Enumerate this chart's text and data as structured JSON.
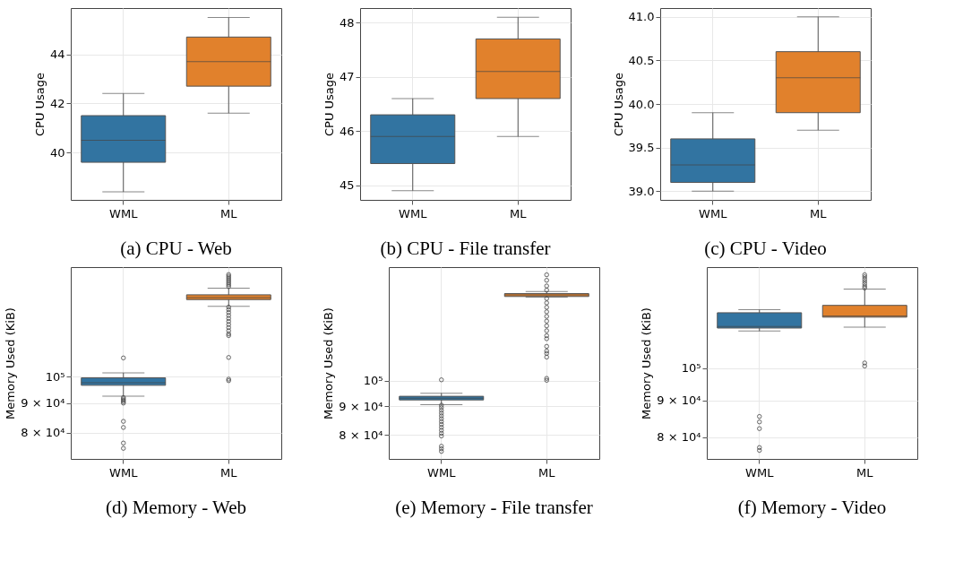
{
  "chart_data": [
    {
      "type": "box",
      "title": "(a)  CPU - Web",
      "ylabel": "CPU Usage",
      "categories": [
        "WML",
        "ML"
      ],
      "colors": [
        "#3274a1",
        "#e1812c"
      ],
      "ylim": [
        38.07,
        45.88
      ],
      "yticks": [
        40,
        42,
        44
      ],
      "grid": true,
      "boxes": [
        {
          "low": 38.4,
          "q1": 39.6,
          "median": 40.5,
          "q3": 41.5,
          "high": 42.4
        },
        {
          "low": 41.6,
          "q1": 42.7,
          "median": 43.7,
          "q3": 44.7,
          "high": 45.5
        }
      ]
    },
    {
      "type": "box",
      "title": "(b)  CPU - File transfer",
      "ylabel": "CPU Usage",
      "categories": [
        "WML",
        "ML"
      ],
      "colors": [
        "#3274a1",
        "#e1812c"
      ],
      "ylim": [
        44.73,
        48.27
      ],
      "yticks": [
        45,
        46,
        47,
        48
      ],
      "grid": true,
      "boxes": [
        {
          "low": 44.9,
          "q1": 45.4,
          "median": 45.9,
          "q3": 46.3,
          "high": 46.6
        },
        {
          "low": 45.9,
          "q1": 46.6,
          "median": 47.1,
          "q3": 47.7,
          "high": 48.1
        }
      ]
    },
    {
      "type": "box",
      "title": "(c)  CPU - Video",
      "ylabel": "CPU Usage",
      "categories": [
        "WML",
        "ML"
      ],
      "colors": [
        "#3274a1",
        "#e1812c"
      ],
      "ylim": [
        38.9,
        41.1
      ],
      "yticks": [
        {
          "value": 39,
          "label": "39.0"
        },
        39.5,
        {
          "value": 40,
          "label": "40.0"
        },
        40.5,
        {
          "value": 41,
          "label": "41.0"
        }
      ],
      "grid": true,
      "boxes": [
        {
          "low": 39.0,
          "q1": 39.1,
          "median": 39.3,
          "q3": 39.6,
          "high": 39.9
        },
        {
          "low": 39.7,
          "q1": 39.9,
          "median": 40.3,
          "q3": 40.6,
          "high": 41.0
        }
      ]
    },
    {
      "type": "box",
      "title": "(d)  Memory - Web",
      "ylabel": "Memory Used (KiB)",
      "categories": [
        "WML",
        "ML"
      ],
      "colors": [
        "#3274a1",
        "#e1812c"
      ],
      "log": true,
      "ylim": [
        72100,
        154500
      ],
      "yticks": [
        {
          "value": 80000,
          "label": "8 × 10⁴"
        },
        {
          "value": 90000,
          "label": "9 × 10⁴"
        },
        {
          "value": 100000,
          "label": "10⁵"
        }
      ],
      "grid": true,
      "boxes": [
        {
          "low": 92500,
          "q1": 96600,
          "median": 97600,
          "q3": 99500,
          "high": 101500,
          "outliers": [
            107700,
            92000,
            91500,
            91000,
            90500,
            90000,
            83700,
            81700,
            76800,
            75200
          ]
        },
        {
          "low": 132200,
          "q1": 135800,
          "median": 136900,
          "q3": 138400,
          "high": 142100,
          "outliers": [
            150000,
            149000,
            148000,
            147000,
            146000,
            145000,
            144000,
            143000,
            131800,
            130500,
            129000,
            127500,
            126000,
            124500,
            123000,
            121500,
            120000,
            118500,
            117700,
            107900,
            99000,
            98400
          ]
        }
      ]
    },
    {
      "type": "box",
      "title": "(e)  Memory - File transfer",
      "ylabel": "Memory Used (KiB)",
      "categories": [
        "WML",
        "ML"
      ],
      "colors": [
        "#3274a1",
        "#e1812c"
      ],
      "log": true,
      "ylim": [
        72400,
        160000
      ],
      "yticks": [
        {
          "value": 80000,
          "label": "8 × 10⁴"
        },
        {
          "value": 90000,
          "label": "9 × 10⁴"
        },
        {
          "value": 100000,
          "label": "10⁵"
        }
      ],
      "grid": true,
      "boxes": [
        {
          "low": 90600,
          "q1": 92400,
          "median": 93100,
          "q3": 93800,
          "high": 95000,
          "outliers": [
            100400,
            90400,
            89500,
            88500,
            87500,
            86500,
            85500,
            84500,
            83500,
            82500,
            81500,
            80500,
            79600,
            76300,
            75500,
            74700
          ]
        },
        {
          "low": 141300,
          "q1": 141700,
          "median": 142600,
          "q3": 143400,
          "high": 144600,
          "outliers": [
            155000,
            151500,
            148000,
            145500,
            140500,
            138000,
            135500,
            133000,
            130500,
            128000,
            125500,
            123000,
            120500,
            119000,
            115300,
            113100,
            112000,
            110300,
            101000,
            100200
          ]
        }
      ]
    },
    {
      "type": "box",
      "title": "(f)  Memory - Video",
      "ylabel": "Memory Used (KiB)",
      "categories": [
        "WML",
        "ML"
      ],
      "colors": [
        "#3274a1",
        "#e1812c"
      ],
      "log": true,
      "ylim": [
        74500,
        138800
      ],
      "yticks": [
        {
          "value": 80000,
          "label": "8 × 10⁴"
        },
        {
          "value": 90000,
          "label": "9 × 10⁴"
        },
        {
          "value": 100000,
          "label": "10⁵"
        }
      ],
      "grid": true,
      "boxes": [
        {
          "low": 112800,
          "q1": 113900,
          "median": 114500,
          "q3": 119700,
          "high": 120900,
          "outliers": [
            85500,
            84000,
            82200,
            77300,
            76600
          ]
        },
        {
          "low": 114200,
          "q1": 118000,
          "median": 118500,
          "q3": 122600,
          "high": 129300,
          "outliers": [
            135400,
            134500,
            133500,
            132500,
            131500,
            130500,
            129700,
            101700,
            100700
          ]
        }
      ]
    }
  ]
}
